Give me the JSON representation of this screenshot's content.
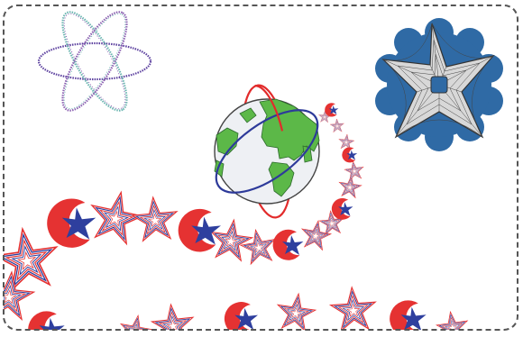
{
  "scene": {
    "background": "#ffffff",
    "frame_color": "#555555",
    "icons": [
      "atom-icon",
      "globe-icon",
      "star-badge-icon",
      "moon-star-icon",
      "outline-star-icon"
    ],
    "colors": {
      "moon_red": "#e53232",
      "star_blue": "#2e3f9e",
      "globe_land": "#5cb848",
      "globe_ocean": "#eef0f4",
      "orbit_red": "#e22b2b",
      "orbit_blue": "#2d3a9a",
      "badge_blue": "#2f6aa5",
      "badge_gray": "#d8d8d8",
      "atom_purple": "#8a5fb0",
      "atom_teal": "#6ab5b0",
      "atom_violet": "#5b3f9e"
    }
  }
}
